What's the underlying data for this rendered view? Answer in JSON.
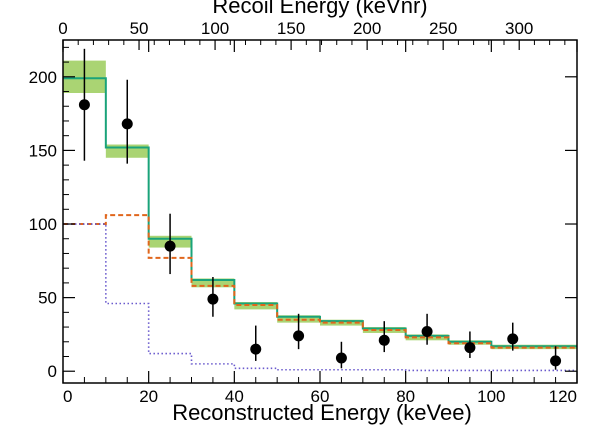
{
  "chart_data": {
    "type": "line",
    "xlabel": "Reconstructed Energy (keVee)",
    "x2label": "Recoil Energy (keVnr)",
    "xlim": [
      0,
      120
    ],
    "ylim": [
      -8,
      225
    ],
    "x2lim": [
      0,
      338
    ],
    "xticks": [
      "0",
      "20",
      "40",
      "60",
      "80",
      "100",
      "120"
    ],
    "yticks": [
      "0",
      "50",
      "100",
      "150",
      "200"
    ],
    "x2ticks": [
      "0",
      "50",
      "100",
      "150",
      "200",
      "250",
      "300"
    ],
    "colors": {
      "total": "#1aa37a",
      "dashed": "#e0661c",
      "dotted": "#6a5acd",
      "band": "#9bcc5a",
      "points": "#000000"
    },
    "bin_edges": [
      0,
      10,
      20,
      30,
      40,
      50,
      60,
      70,
      80,
      90,
      100,
      110,
      120
    ],
    "series": [
      {
        "style": "solid-step",
        "values": [
          199,
          152,
          90,
          62,
          46,
          37,
          34,
          29,
          24,
          20,
          17,
          17
        ],
        "band": [
          [
            189,
            211
          ],
          [
            145,
            154
          ],
          [
            84,
            92
          ],
          [
            57,
            63
          ],
          [
            42,
            47
          ],
          [
            33,
            38
          ],
          [
            31,
            35
          ],
          [
            26,
            30
          ],
          [
            21,
            25
          ],
          [
            18,
            21
          ],
          [
            15,
            18
          ],
          [
            15,
            18
          ]
        ]
      },
      {
        "style": "dashed-step",
        "values": [
          100,
          106,
          77,
          58,
          45,
          35,
          33,
          28,
          23,
          19,
          16,
          16
        ]
      },
      {
        "style": "dotted-step",
        "values": [
          100,
          46,
          12,
          5,
          2,
          1,
          1,
          1,
          0.5,
          0.5,
          0.5,
          0.5
        ]
      },
      {
        "style": "points",
        "x": [
          5,
          15,
          25,
          35,
          45,
          55,
          65,
          75,
          85,
          95,
          105,
          115
        ],
        "values": [
          181,
          168,
          85,
          49,
          15,
          24,
          9,
          21,
          27,
          16,
          22,
          7
        ],
        "err_low": [
          38,
          27,
          19,
          12,
          8,
          9,
          7,
          8,
          9,
          7,
          8,
          6
        ],
        "err_high": [
          38,
          30,
          22,
          15,
          16,
          15,
          11,
          13,
          12,
          11,
          11,
          10
        ]
      }
    ]
  }
}
